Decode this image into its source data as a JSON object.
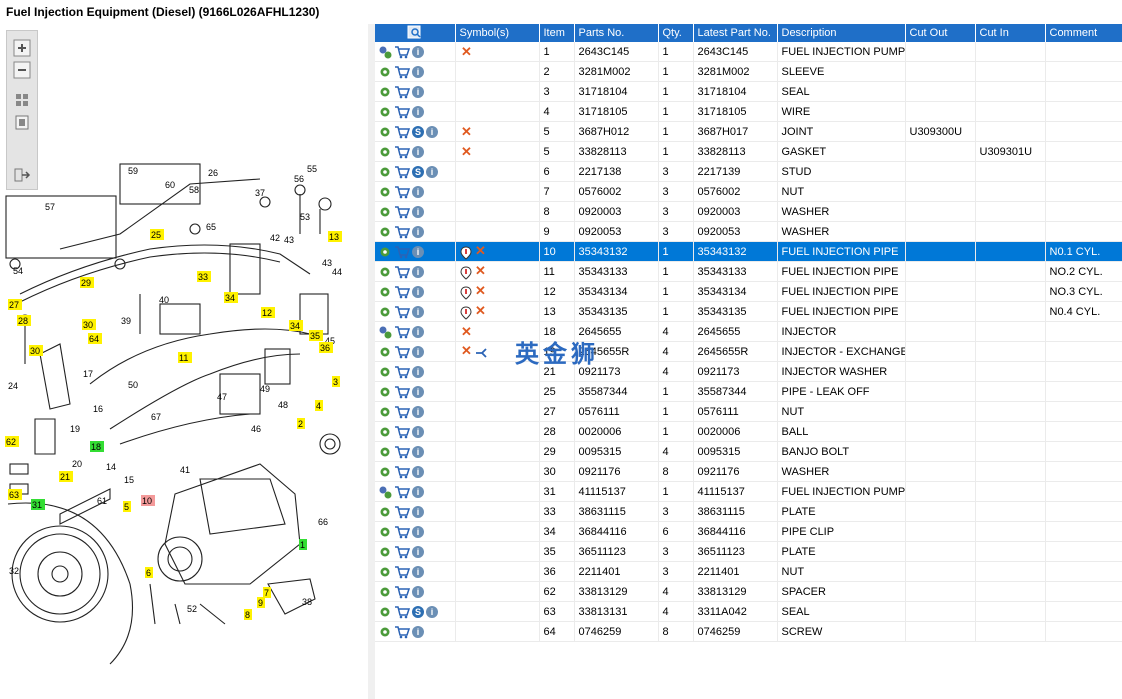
{
  "window": {
    "title": "Fuel Injection Equipment (Diesel) (9166L026AFHL1230)"
  },
  "toolbar": {
    "buttons": [
      "zoom-in",
      "zoom-out",
      "fit-page",
      "actual-size",
      "export"
    ]
  },
  "table": {
    "columns": [
      "",
      "Symbol(s)",
      "Item",
      "Parts No.",
      "Qty.",
      "Latest Part No.",
      "Description",
      "Cut Out",
      "Cut In",
      "Comment"
    ],
    "rows": [
      {
        "icons": "multigear-cart-info",
        "symbols": "x",
        "item": "1",
        "part": "2643C145",
        "qty": "1",
        "latest": "2643C145",
        "desc": "FUEL INJECTION PUMP",
        "cutout": "",
        "cutin": "",
        "comment": ""
      },
      {
        "icons": "gear-cart-info",
        "symbols": "",
        "item": "2",
        "part": "3281M002",
        "qty": "1",
        "latest": "3281M002",
        "desc": "SLEEVE",
        "cutout": "",
        "cutin": "",
        "comment": ""
      },
      {
        "icons": "gear-cart-info",
        "symbols": "",
        "item": "3",
        "part": "31718104",
        "qty": "1",
        "latest": "31718104",
        "desc": "SEAL",
        "cutout": "",
        "cutin": "",
        "comment": ""
      },
      {
        "icons": "gear-cart-info",
        "symbols": "",
        "item": "4",
        "part": "31718105",
        "qty": "1",
        "latest": "31718105",
        "desc": "WIRE",
        "cutout": "",
        "cutin": "",
        "comment": ""
      },
      {
        "icons": "gear-cart-s-info",
        "symbols": "x",
        "item": "5",
        "part": "3687H012",
        "qty": "1",
        "latest": "3687H017",
        "desc": "JOINT",
        "cutout": "U309300U",
        "cutin": "",
        "comment": ""
      },
      {
        "icons": "gear-cart-info",
        "symbols": "x",
        "item": "5",
        "part": "33828113",
        "qty": "1",
        "latest": "33828113",
        "desc": "GASKET",
        "cutout": "",
        "cutin": "U309301U",
        "comment": ""
      },
      {
        "icons": "gear-cart-s-info",
        "symbols": "",
        "item": "6",
        "part": "2217138",
        "qty": "3",
        "latest": "2217139",
        "desc": "STUD",
        "cutout": "",
        "cutin": "",
        "comment": ""
      },
      {
        "icons": "gear-cart-info",
        "symbols": "",
        "item": "7",
        "part": "0576002",
        "qty": "3",
        "latest": "0576002",
        "desc": "NUT",
        "cutout": "",
        "cutin": "",
        "comment": ""
      },
      {
        "icons": "gear-cart-info",
        "symbols": "",
        "item": "8",
        "part": "0920003",
        "qty": "3",
        "latest": "0920003",
        "desc": "WASHER",
        "cutout": "",
        "cutin": "",
        "comment": ""
      },
      {
        "icons": "gear-cart-info",
        "symbols": "",
        "item": "9",
        "part": "0920053",
        "qty": "3",
        "latest": "0920053",
        "desc": "WASHER",
        "cutout": "",
        "cutin": "",
        "comment": ""
      },
      {
        "icons": "gear-cart-info",
        "symbols": "pin-x",
        "item": "10",
        "part": "35343132",
        "qty": "1",
        "latest": "35343132",
        "desc": "FUEL INJECTION PIPE",
        "cutout": "",
        "cutin": "",
        "comment": "N0.1 CYL.",
        "selected": true
      },
      {
        "icons": "gear-cart-info",
        "symbols": "pin-x",
        "item": "11",
        "part": "35343133",
        "qty": "1",
        "latest": "35343133",
        "desc": "FUEL INJECTION PIPE",
        "cutout": "",
        "cutin": "",
        "comment": "NO.2 CYL."
      },
      {
        "icons": "gear-cart-info",
        "symbols": "pin-x",
        "item": "12",
        "part": "35343134",
        "qty": "1",
        "latest": "35343134",
        "desc": "FUEL INJECTION PIPE",
        "cutout": "",
        "cutin": "",
        "comment": "NO.3 CYL."
      },
      {
        "icons": "gear-cart-info",
        "symbols": "pin-x",
        "item": "13",
        "part": "35343135",
        "qty": "1",
        "latest": "35343135",
        "desc": "FUEL INJECTION PIPE",
        "cutout": "",
        "cutin": "",
        "comment": "N0.4 CYL."
      },
      {
        "icons": "multigear-cart-info",
        "symbols": "x",
        "item": "18",
        "part": "2645655",
        "qty": "4",
        "latest": "2645655",
        "desc": "INJECTOR",
        "cutout": "",
        "cutin": "",
        "comment": ""
      },
      {
        "icons": "gear-cart-info",
        "symbols": "x-branch",
        "item": "19",
        "part": "2645655R",
        "qty": "4",
        "latest": "2645655R",
        "desc": "INJECTOR - EXCHANGE",
        "cutout": "",
        "cutin": "",
        "comment": ""
      },
      {
        "icons": "gear-cart-info",
        "symbols": "",
        "item": "21",
        "part": "0921173",
        "qty": "4",
        "latest": "0921173",
        "desc": "INJECTOR WASHER",
        "cutout": "",
        "cutin": "",
        "comment": ""
      },
      {
        "icons": "gear-cart-info",
        "symbols": "",
        "item": "25",
        "part": "35587344",
        "qty": "1",
        "latest": "35587344",
        "desc": "PIPE - LEAK OFF",
        "cutout": "",
        "cutin": "",
        "comment": ""
      },
      {
        "icons": "gear-cart-info",
        "symbols": "",
        "item": "27",
        "part": "0576111",
        "qty": "1",
        "latest": "0576111",
        "desc": "NUT",
        "cutout": "",
        "cutin": "",
        "comment": ""
      },
      {
        "icons": "gear-cart-info",
        "symbols": "",
        "item": "28",
        "part": "0020006",
        "qty": "1",
        "latest": "0020006",
        "desc": "BALL",
        "cutout": "",
        "cutin": "",
        "comment": ""
      },
      {
        "icons": "gear-cart-info",
        "symbols": "",
        "item": "29",
        "part": "0095315",
        "qty": "4",
        "latest": "0095315",
        "desc": "BANJO BOLT",
        "cutout": "",
        "cutin": "",
        "comment": ""
      },
      {
        "icons": "gear-cart-info",
        "symbols": "",
        "item": "30",
        "part": "0921176",
        "qty": "8",
        "latest": "0921176",
        "desc": "WASHER",
        "cutout": "",
        "cutin": "",
        "comment": ""
      },
      {
        "icons": "multigear-cart-info",
        "symbols": "",
        "item": "31",
        "part": "41115137",
        "qty": "1",
        "latest": "41115137",
        "desc": "FUEL INJECTION PUMP G",
        "cutout": "",
        "cutin": "",
        "comment": ""
      },
      {
        "icons": "gear-cart-info",
        "symbols": "",
        "item": "33",
        "part": "38631115",
        "qty": "3",
        "latest": "38631115",
        "desc": "PLATE",
        "cutout": "",
        "cutin": "",
        "comment": ""
      },
      {
        "icons": "gear-cart-info",
        "symbols": "",
        "item": "34",
        "part": "36844116",
        "qty": "6",
        "latest": "36844116",
        "desc": "PIPE CLIP",
        "cutout": "",
        "cutin": "",
        "comment": ""
      },
      {
        "icons": "gear-cart-info",
        "symbols": "",
        "item": "35",
        "part": "36511123",
        "qty": "3",
        "latest": "36511123",
        "desc": "PLATE",
        "cutout": "",
        "cutin": "",
        "comment": ""
      },
      {
        "icons": "gear-cart-info",
        "symbols": "",
        "item": "36",
        "part": "2211401",
        "qty": "3",
        "latest": "2211401",
        "desc": "NUT",
        "cutout": "",
        "cutin": "",
        "comment": ""
      },
      {
        "icons": "gear-cart-info",
        "symbols": "",
        "item": "62",
        "part": "33813129",
        "qty": "4",
        "latest": "33813129",
        "desc": "SPACER",
        "cutout": "",
        "cutin": "",
        "comment": ""
      },
      {
        "icons": "gear-cart-s-info",
        "symbols": "",
        "item": "63",
        "part": "33813131",
        "qty": "4",
        "latest": "3311A042",
        "desc": "SEAL",
        "cutout": "",
        "cutin": "",
        "comment": ""
      },
      {
        "icons": "gear-cart-info",
        "symbols": "",
        "item": "64",
        "part": "0746259",
        "qty": "8",
        "latest": "0746259",
        "desc": "SCREW",
        "cutout": "",
        "cutin": "",
        "comment": ""
      }
    ]
  },
  "watermark": "英金狮",
  "diagram": {
    "callouts": [
      {
        "label": "59",
        "hl": "none"
      },
      {
        "label": "26",
        "hl": "none"
      },
      {
        "label": "55",
        "hl": "none"
      },
      {
        "label": "60",
        "hl": "none"
      },
      {
        "label": "58",
        "hl": "none"
      },
      {
        "label": "56",
        "hl": "none"
      },
      {
        "label": "57",
        "hl": "none"
      },
      {
        "label": "37",
        "hl": "none"
      },
      {
        "label": "53",
        "hl": "none"
      },
      {
        "label": "65",
        "hl": "none"
      },
      {
        "label": "42",
        "hl": "none"
      },
      {
        "label": "13",
        "hl": "yellow"
      },
      {
        "label": "25",
        "hl": "yellow"
      },
      {
        "label": "43",
        "hl": "none"
      },
      {
        "label": "43",
        "hl": "none"
      },
      {
        "label": "44",
        "hl": "none"
      },
      {
        "label": "54",
        "hl": "none"
      },
      {
        "label": "29",
        "hl": "yellow"
      },
      {
        "label": "33",
        "hl": "yellow"
      },
      {
        "label": "27",
        "hl": "yellow"
      },
      {
        "label": "28",
        "hl": "yellow"
      },
      {
        "label": "40",
        "hl": "none"
      },
      {
        "label": "34",
        "hl": "yellow"
      },
      {
        "label": "12",
        "hl": "yellow"
      },
      {
        "label": "39",
        "hl": "none"
      },
      {
        "label": "30",
        "hl": "yellow"
      },
      {
        "label": "64",
        "hl": "yellow"
      },
      {
        "label": "34",
        "hl": "yellow"
      },
      {
        "label": "35",
        "hl": "yellow"
      },
      {
        "label": "45",
        "hl": "none"
      },
      {
        "label": "36",
        "hl": "yellow"
      },
      {
        "label": "11",
        "hl": "yellow"
      },
      {
        "label": "30",
        "hl": "yellow"
      },
      {
        "label": "24",
        "hl": "none"
      },
      {
        "label": "17",
        "hl": "none"
      },
      {
        "label": "49",
        "hl": "none"
      },
      {
        "label": "50",
        "hl": "none"
      },
      {
        "label": "47",
        "hl": "none"
      },
      {
        "label": "48",
        "hl": "none"
      },
      {
        "label": "3",
        "hl": "yellow"
      },
      {
        "label": "4",
        "hl": "yellow"
      },
      {
        "label": "16",
        "hl": "none"
      },
      {
        "label": "67",
        "hl": "none"
      },
      {
        "label": "19",
        "hl": "none"
      },
      {
        "label": "46",
        "hl": "none"
      },
      {
        "label": "2",
        "hl": "yellow"
      },
      {
        "label": "62",
        "hl": "yellow"
      },
      {
        "label": "18",
        "hl": "green"
      },
      {
        "label": "20",
        "hl": "none"
      },
      {
        "label": "14",
        "hl": "none"
      },
      {
        "label": "21",
        "hl": "yellow"
      },
      {
        "label": "41",
        "hl": "none"
      },
      {
        "label": "15",
        "hl": "none"
      },
      {
        "label": "63",
        "hl": "yellow"
      },
      {
        "label": "61",
        "hl": "none"
      },
      {
        "label": "10",
        "hl": "red"
      },
      {
        "label": "31",
        "hl": "green"
      },
      {
        "label": "5",
        "hl": "yellow"
      },
      {
        "label": "66",
        "hl": "none"
      },
      {
        "label": "1",
        "hl": "green"
      },
      {
        "label": "32",
        "hl": "none"
      },
      {
        "label": "6",
        "hl": "yellow"
      },
      {
        "label": "7",
        "hl": "yellow"
      },
      {
        "label": "9",
        "hl": "yellow"
      },
      {
        "label": "38",
        "hl": "none"
      },
      {
        "label": "52",
        "hl": "none"
      },
      {
        "label": "8",
        "hl": "yellow"
      }
    ]
  }
}
